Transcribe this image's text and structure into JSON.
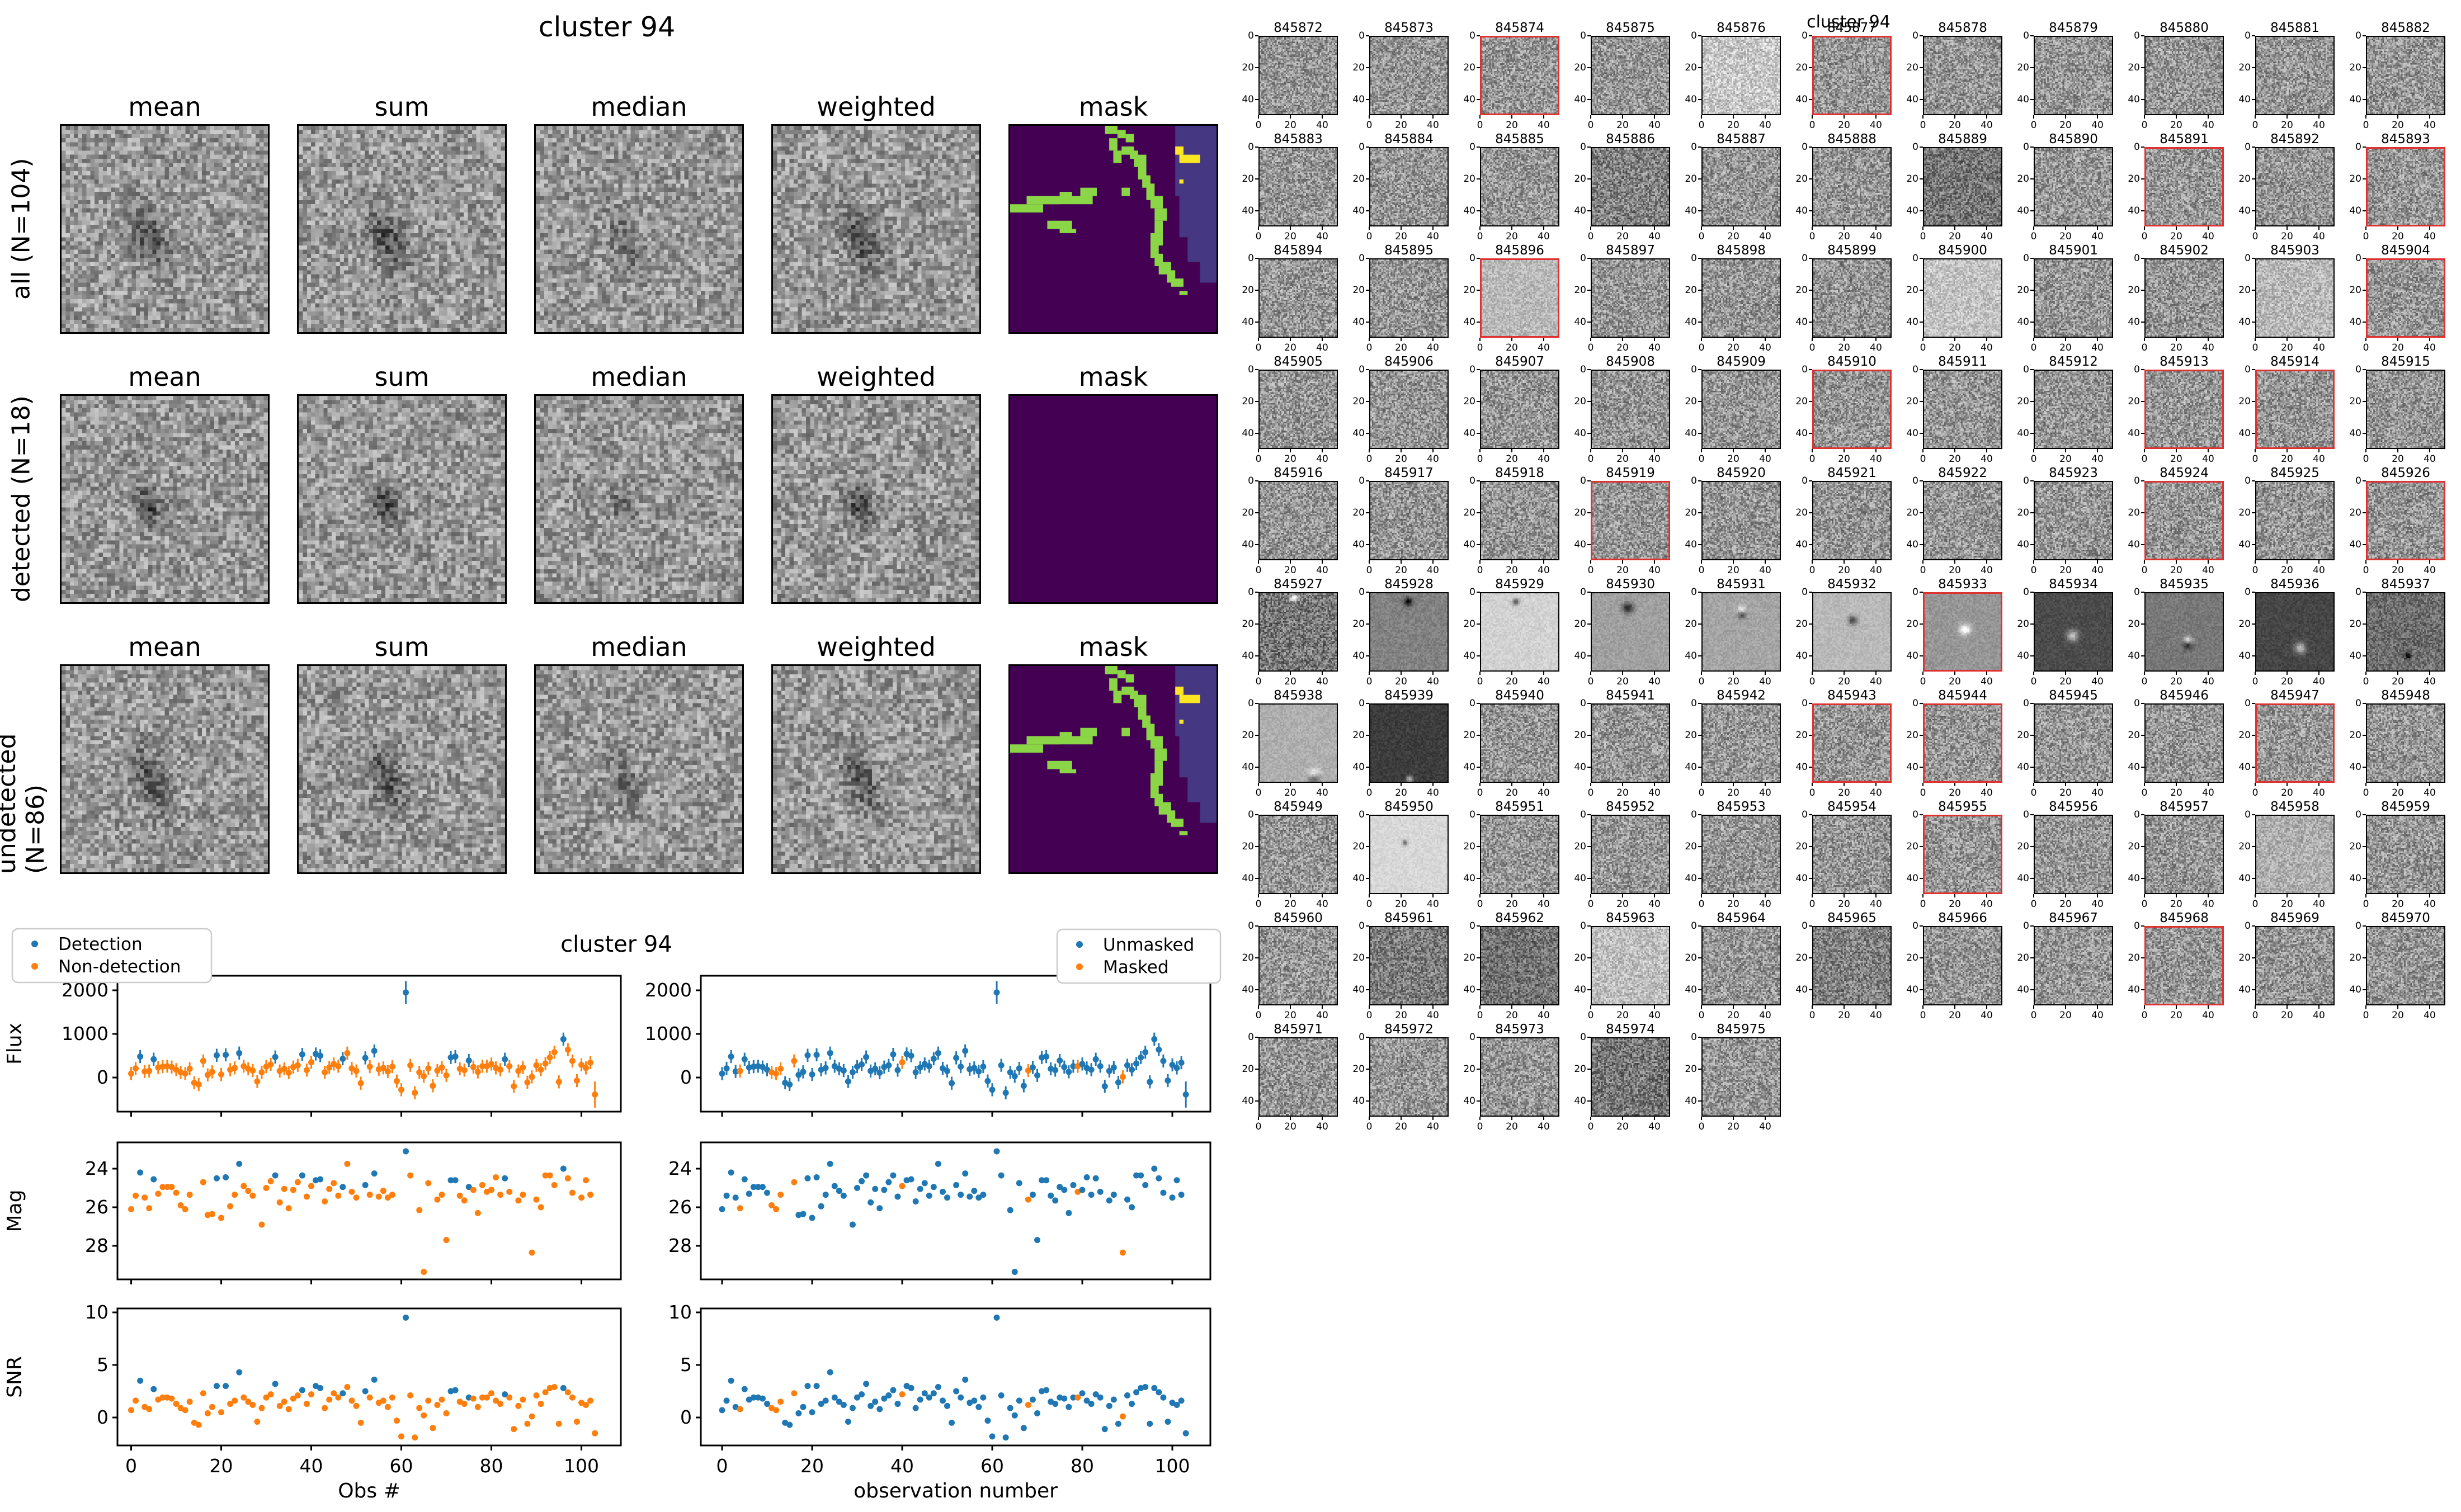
{
  "left_figure": {
    "title": "cluster 94",
    "col_headers": [
      "mean",
      "sum",
      "median",
      "weighted",
      "mask"
    ],
    "rows": [
      {
        "label": "all (N=104)",
        "mask_type": "pattern"
      },
      {
        "label": "detected (N=18)",
        "mask_type": "empty"
      },
      {
        "label": "undetected (N=86)",
        "mask_type": "pattern"
      }
    ]
  },
  "grid_figure": {
    "title": "cluster 94",
    "first_id": 845872,
    "last_id": 845975,
    "thumb_ticks": [
      0,
      20,
      40
    ],
    "ids": [
      845872,
      845873,
      845874,
      845875,
      845876,
      845877,
      845878,
      845879,
      845880,
      845881,
      845882,
      845883,
      845884,
      845885,
      845886,
      845887,
      845888,
      845889,
      845890,
      845891,
      845892,
      845893,
      845894,
      845895,
      845896,
      845897,
      845898,
      845899,
      845900,
      845901,
      845902,
      845903,
      845904,
      845905,
      845906,
      845907,
      845908,
      845909,
      845910,
      845911,
      845912,
      845913,
      845914,
      845915,
      845916,
      845917,
      845918,
      845919,
      845920,
      845921,
      845922,
      845923,
      845924,
      845925,
      845926,
      845927,
      845928,
      845929,
      845930,
      845931,
      845932,
      845933,
      845934,
      845935,
      845936,
      845937,
      845938,
      845939,
      845940,
      845941,
      845942,
      845943,
      845944,
      845945,
      845946,
      845947,
      845948,
      845949,
      845950,
      845951,
      845952,
      845953,
      845954,
      845955,
      845956,
      845957,
      845958,
      845959,
      845960,
      845961,
      845962,
      845963,
      845964,
      845965,
      845966,
      845967,
      845968,
      845969,
      845970,
      845971,
      845972,
      845973,
      845974,
      845975
    ],
    "special": {
      "4": {
        "bg": 200,
        "amp": 45
      },
      "14": {
        "bg": 130,
        "amp": 60
      },
      "17": {
        "bg": 118,
        "amp": 55
      },
      "24": {
        "bg": 185,
        "amp": 30
      },
      "28": {
        "bg": 195,
        "amp": 35
      },
      "31": {
        "bg": 185,
        "amp": 40
      },
      "55": {
        "bg": 120,
        "amp": 60,
        "spot": [
          22,
          2,
          "light",
          2
        ]
      },
      "56": {
        "bg": 130,
        "amp": 18,
        "spot": [
          24,
          5,
          "dark",
          2
        ]
      },
      "57": {
        "bg": 210,
        "amp": 14,
        "spot": [
          22,
          5,
          "dark",
          1.5
        ]
      },
      "58": {
        "bg": 160,
        "amp": 16,
        "spot": [
          23,
          9,
          "dark",
          2.5
        ]
      },
      "59": {
        "bg": 165,
        "amp": 16,
        "spot": [
          25,
          13,
          "darklight",
          2
        ]
      },
      "60": {
        "bg": 185,
        "amp": 14,
        "spot": [
          25,
          17,
          "dark",
          2
        ]
      },
      "61": {
        "bg": 150,
        "amp": 16,
        "spot": [
          26,
          23,
          "light",
          2.5
        ]
      },
      "62": {
        "bg": 75,
        "amp": 14,
        "spot": [
          24,
          27,
          "light",
          2.5
        ]
      },
      "63": {
        "bg": 120,
        "amp": 16,
        "spot": [
          27,
          30,
          "lightdark",
          2
        ]
      },
      "64": {
        "bg": 70,
        "amp": 14,
        "spot": [
          28,
          35,
          "light",
          2.5
        ]
      },
      "65": {
        "bg": 110,
        "amp": 40,
        "spot": [
          26,
          40,
          "dark",
          1.5
        ]
      },
      "66": {
        "bg": 175,
        "amp": 16,
        "spot": [
          35,
          47,
          "darklight",
          2.5
        ]
      },
      "67": {
        "bg": 60,
        "amp": 14,
        "spot": [
          25,
          48,
          "light",
          1.5
        ]
      },
      "78": {
        "bg": 215,
        "amp": 12,
        "spot": [
          22,
          17,
          "dark",
          1.2
        ]
      },
      "86": {
        "bg": 175,
        "amp": 35
      },
      "89": {
        "bg": 125,
        "amp": 55
      },
      "90": {
        "bg": 115,
        "amp": 50
      },
      "91": {
        "bg": 190,
        "amp": 40
      },
      "93": {
        "bg": 130,
        "amp": 55
      },
      "102": {
        "bg": 120,
        "amp": 60
      }
    }
  },
  "chart_data": {
    "type": "scatter",
    "title": "cluster 94",
    "n_obs": 104,
    "xlabel_left": "Obs #",
    "xlabel_right": "observation number",
    "legend_left": [
      "Detection",
      "Non-detection"
    ],
    "legend_right": [
      "Unmasked",
      "Masked"
    ],
    "axes": {
      "x": {
        "ticks": [
          0,
          20,
          40,
          60,
          80,
          100
        ],
        "lim": [
          -3.05,
          108.75
        ]
      },
      "flux": {
        "label": "Flux",
        "ticks": [
          0,
          1000,
          2000
        ],
        "lim": [
          -780,
          2330
        ]
      },
      "mag": {
        "label": "Mag",
        "ticks": [
          24,
          26,
          28
        ],
        "lim": [
          29.7,
          22.65
        ],
        "inverted": true
      },
      "snr": {
        "label": "SNR",
        "ticks": [
          0,
          5,
          10
        ],
        "lim": [
          -2.65,
          10.4
        ]
      }
    },
    "detected_indices": [
      2,
      5,
      19,
      21,
      24,
      32,
      38,
      41,
      42,
      47,
      52,
      54,
      61,
      71,
      72,
      75,
      83,
      96
    ],
    "masked_indices": [
      4,
      11,
      12,
      13,
      16,
      40,
      68,
      79,
      89
    ],
    "flux_err_default": 150,
    "flux_err_overrides": {
      "61": 260,
      "103": 300
    },
    "series": {
      "flux": [
        90,
        210,
        480,
        140,
        150,
        420,
        230,
        250,
        260,
        240,
        180,
        120,
        90,
        200,
        -120,
        -160,
        380,
        60,
        130,
        510,
        70,
        520,
        180,
        220,
        560,
        260,
        200,
        160,
        -90,
        120,
        250,
        300,
        470,
        150,
        200,
        110,
        240,
        280,
        530,
        170,
        350,
        540,
        500,
        120,
        230,
        310,
        260,
        430,
        560,
        210,
        150,
        -130,
        450,
        250,
        610,
        190,
        220,
        140,
        250,
        -80,
        -280,
        1950,
        280,
        -350,
        120,
        30,
        210,
        -190,
        160,
        230,
        50,
        460,
        480,
        200,
        170,
        390,
        240,
        130,
        260,
        260,
        310,
        220,
        180,
        420,
        260,
        -200,
        150,
        230,
        -110,
        15,
        280,
        180,
        320,
        460,
        580,
        -100,
        880,
        640,
        380,
        -70,
        290,
        220,
        340,
        -390
      ],
      "mag": [
        26.1,
        25.4,
        24.2,
        25.5,
        26.05,
        24.55,
        25.3,
        24.95,
        24.95,
        24.95,
        25.25,
        25.9,
        26.1,
        25.35,
        null,
        null,
        24.7,
        26.4,
        26.35,
        24.5,
        26.55,
        24.45,
        25.95,
        25.35,
        23.75,
        24.9,
        25.15,
        25.4,
        null,
        26.9,
        25.0,
        24.65,
        24.35,
        25.75,
        25.05,
        26.05,
        25.1,
        24.7,
        24.35,
        25.45,
        24.9,
        24.6,
        24.55,
        25.7,
        25.05,
        24.75,
        25.4,
        24.95,
        23.75,
        25.2,
        25.5,
        null,
        24.85,
        25.35,
        24.25,
        25.45,
        25.15,
        25.5,
        25.35,
        null,
        null,
        23.1,
        24.35,
        null,
        26.15,
        29.35,
        24.75,
        null,
        25.6,
        25.35,
        27.7,
        24.6,
        24.6,
        25.4,
        25.65,
        24.95,
        25.1,
        26.3,
        24.85,
        25.2,
        25.1,
        24.45,
        25.35,
        24.5,
        25.2,
        null,
        25.65,
        25.35,
        null,
        28.35,
        25.6,
        26.0,
        24.35,
        24.35,
        24.85,
        null,
        24.0,
        24.5,
        25.25,
        null,
        25.5,
        24.6,
        25.35,
        null
      ],
      "snr": [
        0.7,
        1.6,
        3.5,
        1.0,
        0.8,
        2.7,
        1.7,
        1.9,
        1.9,
        1.8,
        1.3,
        0.9,
        0.7,
        1.5,
        -0.5,
        -0.7,
        2.3,
        0.4,
        1.0,
        3.0,
        0.5,
        3.0,
        1.3,
        1.6,
        4.3,
        1.9,
        1.5,
        1.2,
        -0.4,
        0.9,
        1.9,
        2.2,
        3.2,
        1.1,
        1.5,
        0.8,
        1.8,
        2.1,
        2.6,
        1.3,
        2.2,
        3.0,
        2.8,
        0.9,
        1.7,
        2.3,
        1.9,
        2.3,
        2.9,
        1.6,
        1.1,
        -0.5,
        2.5,
        1.9,
        3.6,
        1.4,
        1.6,
        1.0,
        1.9,
        -0.3,
        -1.8,
        9.5,
        2.1,
        -1.9,
        0.9,
        0.2,
        1.6,
        -1.0,
        1.2,
        1.7,
        0.4,
        2.5,
        2.6,
        1.5,
        1.3,
        1.9,
        1.8,
        1.0,
        1.9,
        1.9,
        2.3,
        1.6,
        1.3,
        2.2,
        1.9,
        -1.1,
        1.1,
        1.7,
        -0.6,
        0.1,
        2.1,
        1.3,
        2.4,
        2.8,
        2.9,
        -0.6,
        2.8,
        2.4,
        1.9,
        -0.4,
        1.4,
        1.2,
        1.6,
        -1.5
      ]
    }
  },
  "colors": {
    "point_blue": "#1f77b4",
    "point_orange": "#ff7f0e",
    "detected_border_red": "#e03131",
    "spine_black": "#000000",
    "legend_border": "#cccccc",
    "mask_purple": "#440154",
    "mask_blue": "#453781",
    "mask_green": "#8bd646",
    "mask_yellow": "#fde725"
  }
}
